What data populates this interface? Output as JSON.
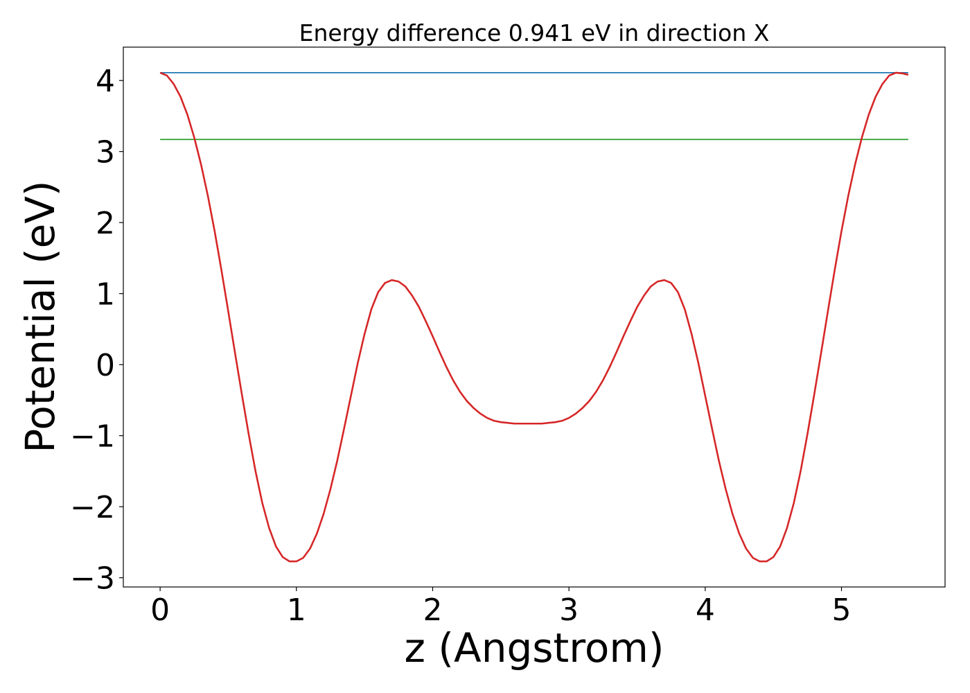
{
  "chart_data": {
    "type": "line",
    "title": "Energy difference 0.941 eV in direction X",
    "xlabel": "z (Angstrom)",
    "ylabel": "Potential (eV)",
    "xlim": [
      -0.27,
      5.76
    ],
    "ylim": [
      -3.13,
      4.47
    ],
    "xticks": [
      0,
      1,
      2,
      3,
      4,
      5
    ],
    "xtick_labels": [
      "0",
      "1",
      "2",
      "3",
      "4",
      "5"
    ],
    "yticks": [
      -3,
      -2,
      -1,
      0,
      1,
      2,
      3,
      4
    ],
    "ytick_labels": [
      "−3",
      "−2",
      "−1",
      "0",
      "1",
      "2",
      "3",
      "4"
    ],
    "grid": false,
    "legend": "none",
    "series": [
      {
        "color": "#1f77b4",
        "x": [
          0.0,
          5.49
        ],
        "y": [
          4.11,
          4.11
        ]
      },
      {
        "color": "#2ca02c",
        "x": [
          0.0,
          5.49
        ],
        "y": [
          3.17,
          3.17
        ]
      },
      {
        "color": "#d62728",
        "x": [
          0.0,
          0.05,
          0.1,
          0.15,
          0.2,
          0.25,
          0.3,
          0.35,
          0.4,
          0.45,
          0.5,
          0.55,
          0.6,
          0.65,
          0.7,
          0.75,
          0.8,
          0.85,
          0.9,
          0.95,
          1.0,
          1.05,
          1.1,
          1.15,
          1.2,
          1.25,
          1.3,
          1.35,
          1.4,
          1.45,
          1.5,
          1.55,
          1.6,
          1.65,
          1.7,
          1.75,
          1.8,
          1.85,
          1.9,
          1.95,
          2.0,
          2.05,
          2.1,
          2.15,
          2.2,
          2.25,
          2.3,
          2.35,
          2.4,
          2.45,
          2.5,
          2.55,
          2.6,
          2.65,
          2.7,
          2.75,
          2.8,
          2.85,
          2.9,
          2.95,
          3.0,
          3.05,
          3.1,
          3.15,
          3.2,
          3.25,
          3.3,
          3.35,
          3.4,
          3.45,
          3.5,
          3.55,
          3.6,
          3.65,
          3.7,
          3.75,
          3.8,
          3.85,
          3.9,
          3.95,
          4.0,
          4.05,
          4.1,
          4.15,
          4.2,
          4.25,
          4.3,
          4.35,
          4.4,
          4.45,
          4.5,
          4.55,
          4.6,
          4.65,
          4.7,
          4.75,
          4.8,
          4.85,
          4.9,
          4.95,
          5.0,
          5.05,
          5.1,
          5.15,
          5.2,
          5.25,
          5.3,
          5.35,
          5.4,
          5.45,
          5.49
        ],
        "y": [
          4.11,
          4.07,
          3.95,
          3.77,
          3.52,
          3.2,
          2.82,
          2.38,
          1.88,
          1.33,
          0.75,
          0.16,
          -0.42,
          -0.98,
          -1.5,
          -1.95,
          -2.3,
          -2.56,
          -2.71,
          -2.77,
          -2.77,
          -2.72,
          -2.59,
          -2.38,
          -2.1,
          -1.75,
          -1.35,
          -0.9,
          -0.44,
          0.02,
          0.43,
          0.78,
          1.02,
          1.15,
          1.19,
          1.17,
          1.1,
          0.97,
          0.81,
          0.61,
          0.4,
          0.18,
          -0.03,
          -0.22,
          -0.38,
          -0.51,
          -0.61,
          -0.69,
          -0.75,
          -0.79,
          -0.81,
          -0.82,
          -0.83,
          -0.83,
          -0.83,
          -0.83,
          -0.83,
          -0.82,
          -0.81,
          -0.79,
          -0.75,
          -0.69,
          -0.61,
          -0.51,
          -0.38,
          -0.22,
          -0.03,
          0.18,
          0.4,
          0.61,
          0.81,
          0.97,
          1.1,
          1.17,
          1.19,
          1.15,
          1.02,
          0.78,
          0.43,
          0.02,
          -0.44,
          -0.9,
          -1.35,
          -1.75,
          -2.1,
          -2.38,
          -2.59,
          -2.72,
          -2.77,
          -2.77,
          -2.71,
          -2.56,
          -2.3,
          -1.95,
          -1.5,
          -0.98,
          -0.42,
          0.16,
          0.75,
          1.33,
          1.88,
          2.38,
          2.82,
          3.2,
          3.52,
          3.77,
          3.95,
          4.07,
          4.11,
          4.1,
          4.08
        ]
      }
    ]
  }
}
